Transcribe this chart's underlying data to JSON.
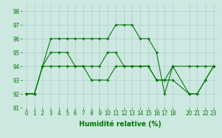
{
  "lines": [
    {
      "x": [
        0,
        1,
        2,
        3,
        4,
        5,
        6,
        7,
        8,
        9,
        10,
        11,
        12,
        13,
        14,
        15,
        16,
        17,
        18,
        20,
        21,
        22,
        23
      ],
      "y": [
        92,
        92,
        94,
        96,
        96,
        96,
        96,
        96,
        96,
        96,
        96,
        97,
        97,
        97,
        96,
        96,
        95,
        92,
        94,
        94,
        94,
        94,
        94
      ]
    },
    {
      "x": [
        0,
        1,
        2,
        3,
        4,
        5,
        6,
        7,
        8,
        9,
        10,
        11,
        12,
        13,
        14,
        15,
        16,
        17,
        18,
        20,
        21,
        22,
        23
      ],
      "y": [
        92,
        92,
        94,
        95,
        95,
        95,
        94,
        94,
        94,
        94,
        95,
        95,
        94,
        94,
        94,
        94,
        93,
        93,
        94,
        92,
        92,
        93,
        94
      ]
    },
    {
      "x": [
        0,
        1,
        2,
        3,
        4,
        5,
        6,
        7,
        8,
        9,
        10,
        11,
        12,
        13,
        14,
        15,
        16,
        17,
        18,
        20,
        21,
        22,
        23
      ],
      "y": [
        92,
        92,
        94,
        94,
        94,
        94,
        94,
        94,
        93,
        93,
        93,
        94,
        94,
        94,
        94,
        94,
        93,
        93,
        93,
        92,
        92,
        93,
        94
      ]
    }
  ],
  "xlabel": "Humidité relative (%)",
  "xlim": [
    -0.5,
    23.5
  ],
  "ylim": [
    91,
    98.5
  ],
  "yticks": [
    91,
    92,
    93,
    94,
    95,
    96,
    97,
    98
  ],
  "xticks": [
    0,
    1,
    2,
    3,
    4,
    5,
    6,
    7,
    8,
    9,
    10,
    11,
    12,
    13,
    14,
    15,
    16,
    17,
    18,
    20,
    21,
    22,
    23
  ],
  "background_color": "#cce8e0",
  "grid_color": "#aacccc",
  "line_color": "#007700",
  "xlabel_color": "#007700",
  "tick_color": "#007700",
  "tick_fontsize": 5.5,
  "xlabel_fontsize": 7,
  "figwidth": 3.2,
  "figheight": 2.0,
  "dpi": 100
}
